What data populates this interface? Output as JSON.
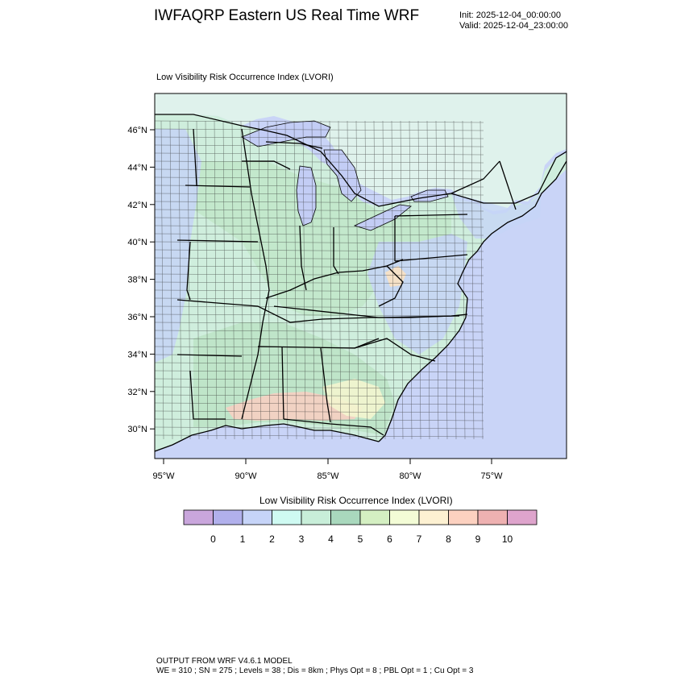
{
  "header": {
    "title": "IWFAQRP Eastern US Real Time WRF",
    "init": "Init: 2025-12-04_00:00:00",
    "valid": "Valid: 2025-12-04_23:00:00"
  },
  "map": {
    "subtitle": "Low Visibility Risk Occurrence Index   (LVORI)",
    "lat_ticks": [
      "46°N",
      "44°N",
      "42°N",
      "40°N",
      "38°N",
      "36°N",
      "34°N",
      "32°N",
      "30°N"
    ],
    "lon_ticks": [
      "95°W",
      "90°W",
      "85°W",
      "80°W",
      "75°W"
    ],
    "colors": {
      "ocean": "#c9d4f7",
      "land_base": "#cfeedd",
      "canada": "#dff2ec",
      "lake": "#c3cdf5"
    }
  },
  "colorbar": {
    "title": "Low Visibility Risk Occurrence Index  (LVORI)",
    "labels": [
      "0",
      "1",
      "2",
      "3",
      "4",
      "5",
      "6",
      "7",
      "8",
      "9",
      "10"
    ],
    "colors": [
      "#c9a6dc",
      "#b1b0ec",
      "#c6d4f8",
      "#cffaf2",
      "#c8eed9",
      "#a9d8bd",
      "#d4efc2",
      "#f3fcd6",
      "#fdf1d2",
      "#fcd1c0",
      "#eeb1b1",
      "#dea4cc"
    ]
  },
  "footer": {
    "line1": "OUTPUT FROM WRF V4.6.1 MODEL",
    "line2": "WE = 310 ; SN = 275 ; Levels = 38 ; Dis = 8km ; Phys Opt = 8 ; PBL Opt = 1 ; Cu Opt = 3"
  }
}
